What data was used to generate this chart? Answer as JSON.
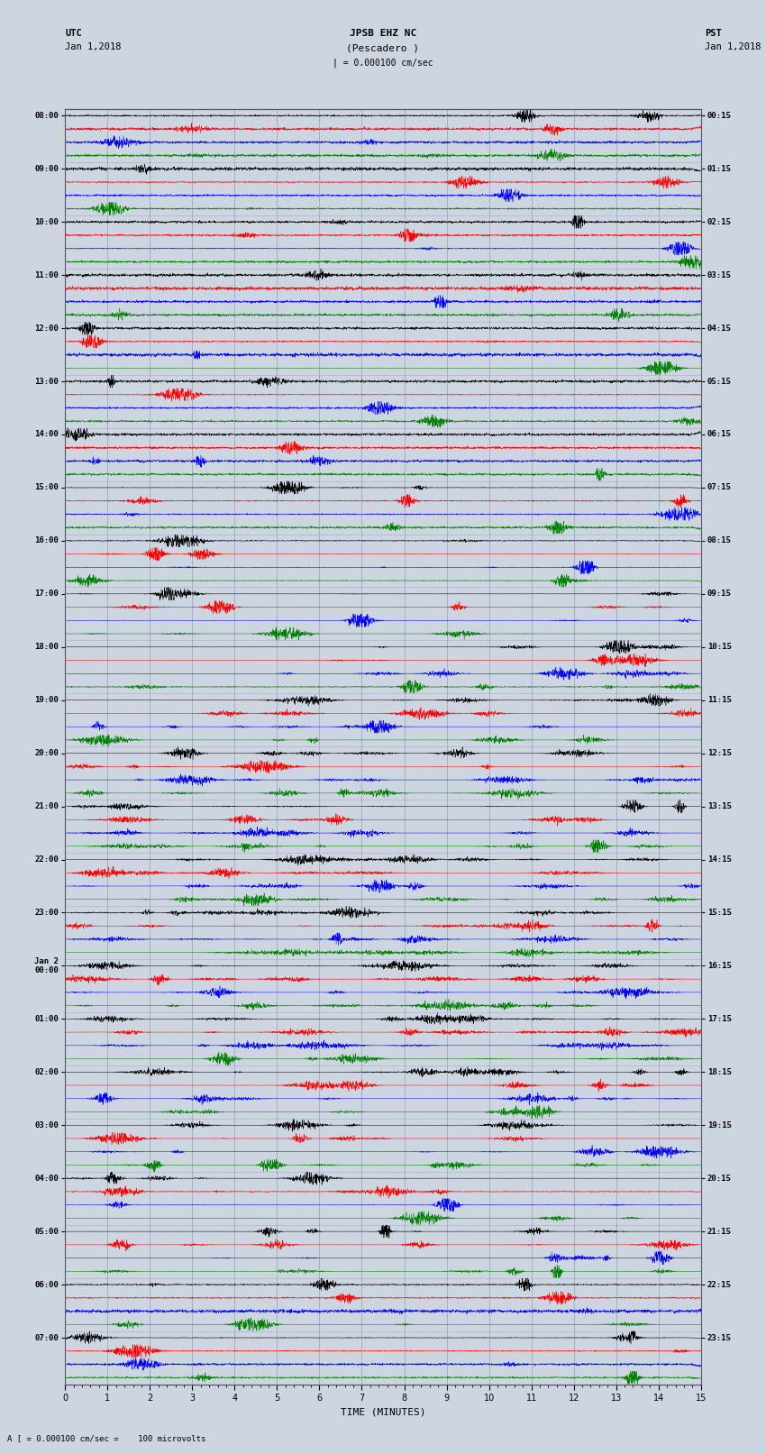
{
  "title_line1": "JPSB EHZ NC",
  "title_line2": "(Pescadero )",
  "scale_text": "| = 0.000100 cm/sec",
  "footer_text": "A [ = 0.000100 cm/sec =    100 microvolts",
  "utc_label": "UTC",
  "utc_date": "Jan 1,2018",
  "pst_label": "PST",
  "pst_date": "Jan 1,2018",
  "xlabel": "TIME (MINUTES)",
  "left_times": [
    "08:00",
    "09:00",
    "10:00",
    "11:00",
    "12:00",
    "13:00",
    "14:00",
    "15:00",
    "16:00",
    "17:00",
    "18:00",
    "19:00",
    "20:00",
    "21:00",
    "22:00",
    "23:00",
    "Jan 2\n00:00",
    "01:00",
    "02:00",
    "03:00",
    "04:00",
    "05:00",
    "06:00",
    "07:00"
  ],
  "right_times": [
    "00:15",
    "01:15",
    "02:15",
    "03:15",
    "04:15",
    "05:15",
    "06:15",
    "07:15",
    "08:15",
    "09:15",
    "10:15",
    "11:15",
    "12:15",
    "13:15",
    "14:15",
    "15:15",
    "16:15",
    "17:15",
    "18:15",
    "19:15",
    "20:15",
    "21:15",
    "22:15",
    "23:15"
  ],
  "num_rows": 24,
  "traces_per_row": 4,
  "trace_colors": [
    "black",
    "red",
    "blue",
    "green"
  ],
  "xlim": [
    0,
    15
  ],
  "bg_color": "#ccd5e0",
  "plot_bg_color": "#ccd5e0",
  "grid_color": "#888899",
  "noise_scale": 0.15,
  "minutes_per_row": 15,
  "fig_width": 8.5,
  "fig_height": 16.13,
  "activity_levels": [
    0.04,
    0.04,
    0.05,
    0.04,
    0.05,
    0.05,
    0.06,
    0.08,
    0.12,
    0.18,
    0.22,
    0.3,
    0.42,
    0.52,
    0.65,
    0.75,
    0.68,
    0.58,
    0.42,
    0.28,
    0.18,
    0.28,
    0.12,
    0.09
  ]
}
